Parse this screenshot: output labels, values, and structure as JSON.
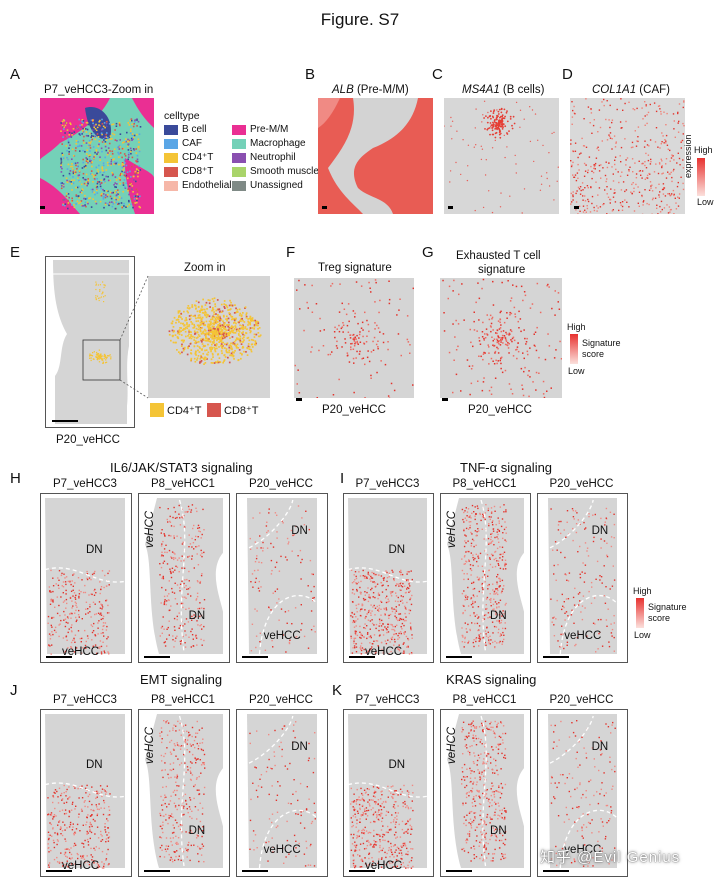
{
  "figure_title": "Figure. S7",
  "panels": {
    "A": {
      "letter": "A",
      "title": "P7_veHCC3-Zoom in",
      "legend_title": "celltype",
      "legend_items": [
        {
          "label": "B cell",
          "color": "#3a4a9a"
        },
        {
          "label": "CAF",
          "color": "#5aa6e6"
        },
        {
          "label": "CD4⁺T",
          "color": "#f4c436"
        },
        {
          "label": "CD8⁺T",
          "color": "#d6564e"
        },
        {
          "label": "Endothelial",
          "color": "#f6b7a8"
        },
        {
          "label": "Pre-M/M",
          "color": "#ea2f93"
        },
        {
          "label": "Macrophage",
          "color": "#74d1b8"
        },
        {
          "label": "Neutrophil",
          "color": "#8a4fb0"
        },
        {
          "label": "Smooth muscle",
          "color": "#a9d46a"
        },
        {
          "label": "Unassigned",
          "color": "#7f8a86"
        }
      ]
    },
    "B": {
      "letter": "B",
      "gene": "ALB",
      "suffix": " (Pre-M/M)"
    },
    "C": {
      "letter": "C",
      "gene": "MS4A1",
      "suffix": " (B cells)"
    },
    "D": {
      "letter": "D",
      "gene": "COL1A1",
      "suffix": " (CAF)",
      "legend_high": "High",
      "legend_low": "Low",
      "legend_title": "expression"
    },
    "E": {
      "letter": "E",
      "zoom_title": "Zoom in",
      "sample": "P20_veHCC",
      "legend": [
        {
          "label": "CD4⁺T",
          "color": "#f4c436"
        },
        {
          "label": "CD8⁺T",
          "color": "#d6564e"
        }
      ]
    },
    "F": {
      "letter": "F",
      "title": "Treg signature",
      "sample": "P20_veHCC"
    },
    "G": {
      "letter": "G",
      "title_line1": "Exhausted T cell",
      "title_line2": "signature",
      "sample": "P20_veHCC",
      "legend_high": "High",
      "legend_low": "Low",
      "legend_title_1": "Signature",
      "legend_title_2": "score"
    },
    "H": {
      "letter": "H",
      "title": "IL6/JAK/STAT3 signaling"
    },
    "I": {
      "letter": "I",
      "title": "TNF-α signaling",
      "legend_high": "High",
      "legend_low": "Low",
      "legend_title_1": "Signature",
      "legend_title_2": "score"
    },
    "J": {
      "letter": "J",
      "title": "EMT signaling"
    },
    "K": {
      "letter": "K",
      "title": "KRAS signaling"
    }
  },
  "samples": [
    "P7_veHCC3",
    "P8_veHCC1",
    "P20_veHCC"
  ],
  "region_labels": {
    "dn": "DN",
    "vehcc": "veHCC"
  },
  "watermark": "知乎 @Evil Genius"
}
